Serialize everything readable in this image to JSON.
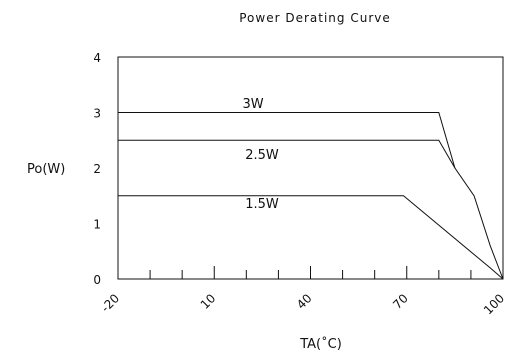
{
  "chart_data": {
    "type": "line",
    "title": "Power Derating Curve",
    "xlabel": "TA(˚C)",
    "ylabel": "Po(W)",
    "x_ticks": [
      -20,
      10,
      40,
      70,
      100
    ],
    "x_tick_labels": [
      "-20",
      "10",
      "40",
      "70",
      "100"
    ],
    "x_minor_ticks": [
      -10,
      0,
      20,
      30,
      50,
      60,
      80,
      90
    ],
    "y_ticks": [
      0,
      1,
      2,
      3,
      4
    ],
    "y_tick_labels": [
      "0",
      "1",
      "2",
      "3",
      "4"
    ],
    "xlim": [
      -20,
      100
    ],
    "ylim": [
      0,
      4
    ],
    "grid": false,
    "series": [
      {
        "name": "3W",
        "points": [
          [
            -20,
            3.0
          ],
          [
            80,
            3.0
          ],
          [
            85,
            2.0
          ],
          [
            91,
            1.5
          ],
          [
            96,
            0.6
          ],
          [
            100,
            0.0
          ]
        ]
      },
      {
        "name": "2.5W",
        "points": [
          [
            -20,
            2.5
          ],
          [
            80,
            2.5
          ],
          [
            85,
            2.0
          ]
        ]
      },
      {
        "name": "1.5W",
        "points": [
          [
            -20,
            1.5
          ],
          [
            69,
            1.5
          ],
          [
            96,
            0.2
          ],
          [
            100,
            0.0
          ]
        ]
      }
    ]
  }
}
